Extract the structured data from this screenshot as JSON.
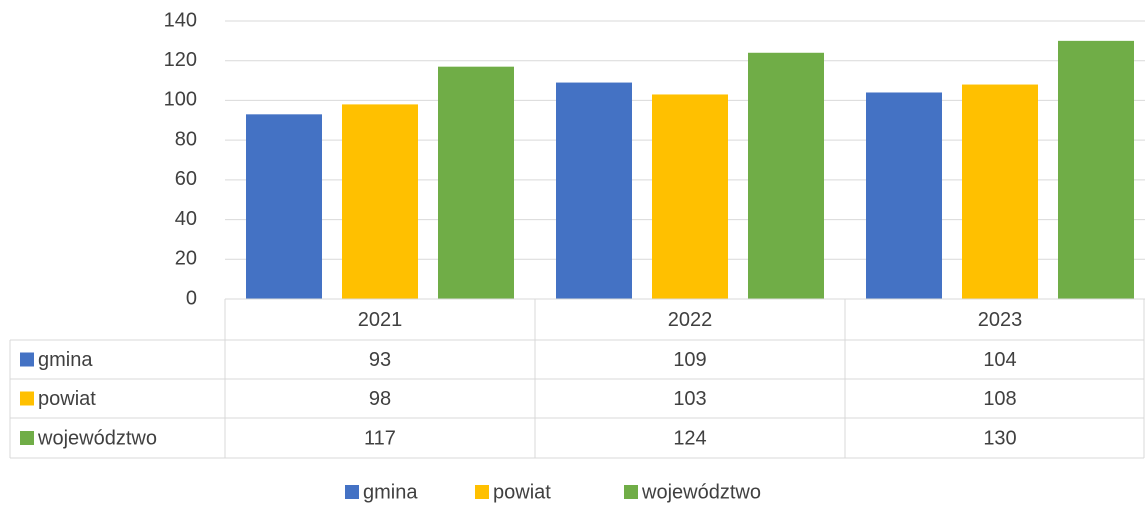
{
  "chart_data": {
    "type": "bar",
    "categories": [
      "2021",
      "2022",
      "2023"
    ],
    "series": [
      {
        "name": "gmina",
        "color": "#4472c4",
        "values": [
          93,
          109,
          104
        ]
      },
      {
        "name": "powiat",
        "color": "#ffc000",
        "values": [
          98,
          103,
          108
        ]
      },
      {
        "name": "województwo",
        "color": "#70ad47",
        "values": [
          117,
          124,
          130
        ]
      }
    ],
    "ylim": [
      0,
      140
    ],
    "yticks": [
      0,
      20,
      40,
      60,
      80,
      100,
      120,
      140
    ],
    "grid": true,
    "data_table": true,
    "legend": "bottom"
  }
}
